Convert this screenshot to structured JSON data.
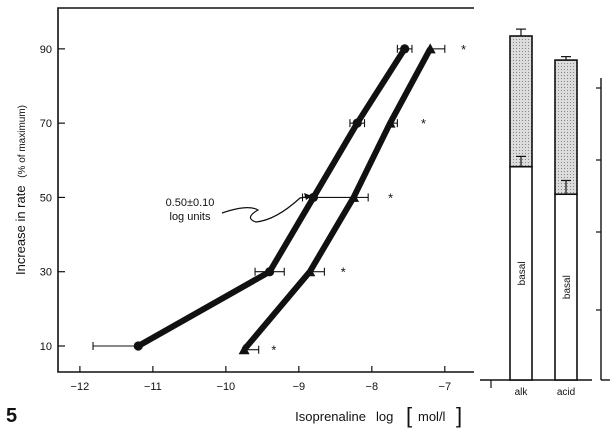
{
  "figure": {
    "panel_number": "5"
  },
  "chart_data": [
    {
      "type": "line",
      "title": "",
      "xlabel": "Isoprenaline",
      "xlabel_unit_prefix": "log",
      "xlabel_unit": "mol/l",
      "ylabel": "Increase in rate",
      "ylabel_note": "(% of maximum)",
      "xlim": [
        -12.3,
        -6.6
      ],
      "ylim": [
        3,
        101
      ],
      "x_ticks": [
        -12,
        -11,
        -10,
        -9,
        -8,
        -7
      ],
      "x_tick_labels": [
        "-12",
        "-11",
        "-10",
        "-9",
        "-8",
        "-7"
      ],
      "y_ticks": [
        10,
        30,
        50,
        70,
        90
      ],
      "y_tick_labels": [
        "10",
        "30",
        "50",
        "70",
        "90"
      ],
      "annotation": {
        "line1": "0.50±0.10",
        "line2": "log units"
      },
      "series": [
        {
          "marker": "circle",
          "points": [
            {
              "x": -11.2,
              "y": 10,
              "xerr_minus": 0.62,
              "xerr_plus": 0.0
            },
            {
              "x": -9.4,
              "y": 30,
              "xerr_minus": 0.2,
              "xerr_plus": 0.2
            },
            {
              "x": -8.8,
              "y": 50,
              "xerr_minus": 0.15,
              "xerr_plus": 0.55
            },
            {
              "x": -8.2,
              "y": 70,
              "xerr_minus": 0.1,
              "xerr_plus": 0.1
            },
            {
              "x": -7.55,
              "y": 90,
              "xerr_minus": 0.1,
              "xerr_plus": 0.1
            }
          ]
        },
        {
          "marker": "triangle",
          "points": [
            {
              "x": -9.75,
              "y": 9,
              "xerr_minus": 0.0,
              "xerr_plus": 0.2
            },
            {
              "x": -8.85,
              "y": 30,
              "xerr_minus": 0.0,
              "xerr_plus": 0.2
            },
            {
              "x": -8.25,
              "y": 50,
              "xerr_minus": 0.0,
              "xerr_plus": 0.2
            },
            {
              "x": -7.75,
              "y": 70,
              "xerr_minus": 0.0,
              "xerr_plus": 0.1
            },
            {
              "x": -7.2,
              "y": 90,
              "xerr_minus": 0.0,
              "xerr_plus": 0.2
            }
          ]
        }
      ],
      "significance_markers": [
        {
          "x": -9.35,
          "y": 9,
          "symbol": "*"
        },
        {
          "x": -8.4,
          "y": 30,
          "symbol": "*"
        },
        {
          "x": -7.75,
          "y": 50,
          "symbol": "*"
        },
        {
          "x": -7.3,
          "y": 70,
          "symbol": "*"
        },
        {
          "x": -6.75,
          "y": 90,
          "symbol": "*"
        }
      ]
    },
    {
      "type": "bar",
      "stacked": true,
      "categories": [
        "alk",
        "acid"
      ],
      "ylim": [
        0,
        100
      ],
      "segment_labels": {
        "bottom": "basal"
      },
      "bars": [
        {
          "category": "alk",
          "basal": 62,
          "total": 100,
          "err_basal": 3,
          "err_total": 2
        },
        {
          "category": "acid",
          "basal": 54,
          "total": 93,
          "err_basal": 4,
          "err_total": 1
        }
      ],
      "segment_fills": {
        "basal": "#ffffff",
        "increase": "#c8c8c8"
      }
    }
  ]
}
